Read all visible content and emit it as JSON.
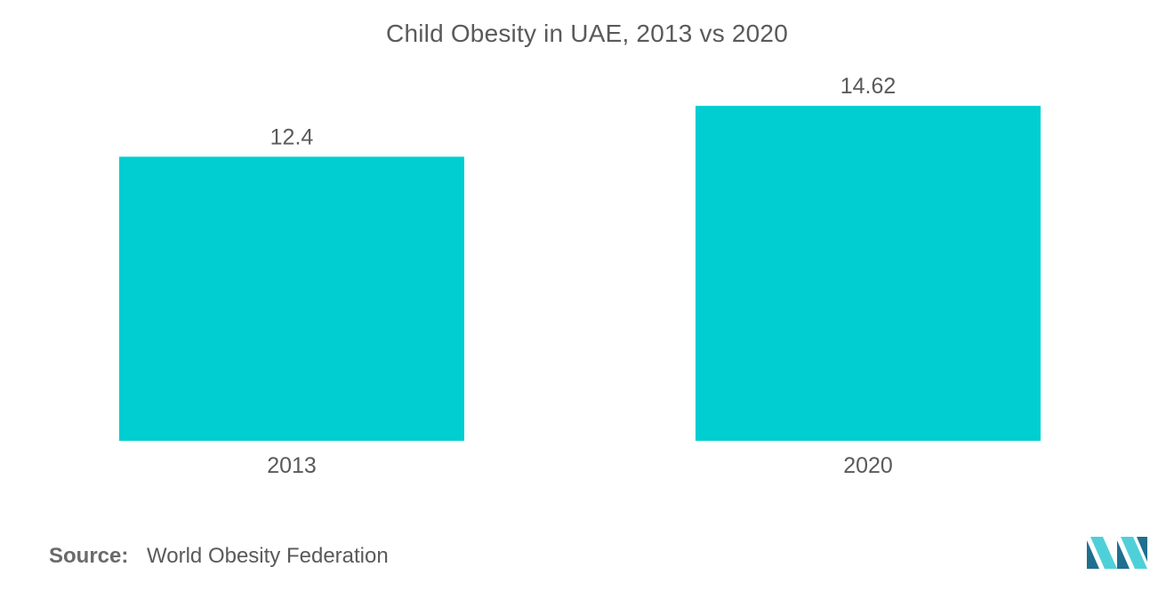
{
  "chart_data": {
    "type": "bar",
    "title": "Child Obesity in UAE, 2013 vs 2020",
    "categories": [
      "2013",
      "2020"
    ],
    "values": [
      12.4,
      14.62
    ],
    "value_labels": [
      "12.4",
      "14.62"
    ],
    "xlabel": "",
    "ylabel": "",
    "ylim": [
      0,
      18
    ],
    "grid": false,
    "legend": "none"
  },
  "colors": {
    "bar": "#00CED1",
    "text": "#5a5a5a",
    "logo_dark": "#1f6f8f",
    "logo_light": "#4fd0d8"
  },
  "source": {
    "label": "Source:",
    "text": "World Obesity Federation"
  },
  "logo": {
    "icon": "brand-logo-icon"
  }
}
